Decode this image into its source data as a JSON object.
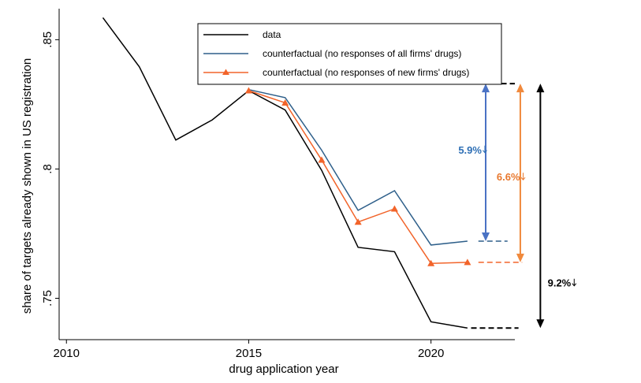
{
  "chart_data": {
    "type": "line",
    "xlabel": "drug application year",
    "ylabel": "share of targets already shown in US registration",
    "xlim": [
      2009.8,
      2022.3
    ],
    "ylim": [
      0.734,
      0.862
    ],
    "xticks": [
      {
        "value": 2010,
        "label": "2010"
      },
      {
        "value": 2015,
        "label": "2015"
      },
      {
        "value": 2020,
        "label": "2020"
      }
    ],
    "yticks": [
      {
        "value": 0.75,
        "label": ".75"
      },
      {
        "value": 0.8,
        "label": ".8"
      },
      {
        "value": 0.85,
        "label": ".85"
      }
    ],
    "grid": false,
    "legend_position": "top-center",
    "series": [
      {
        "name": "data",
        "color": "#000000",
        "marker": "none",
        "x": [
          2011,
          2012,
          2013,
          2014,
          2015,
          2016,
          2017,
          2018,
          2019,
          2020,
          2021
        ],
        "y": [
          0.8585,
          0.8395,
          0.8112,
          0.819,
          0.8303,
          0.8228,
          0.7995,
          0.7697,
          0.768,
          0.7409,
          0.7385
        ]
      },
      {
        "name": "counterfactual (no responses of all firms' drugs)",
        "color": "#2e5f8a",
        "marker": "none",
        "x": [
          2015,
          2016,
          2017,
          2018,
          2019,
          2020,
          2021
        ],
        "y": [
          0.8307,
          0.8276,
          0.8073,
          0.784,
          0.7916,
          0.7706,
          0.7721
        ]
      },
      {
        "name": "counterfactual (no responses of new firms' drugs)",
        "color": "#f2642a",
        "marker": "triangle",
        "x": [
          2015,
          2016,
          2017,
          2018,
          2019,
          2020,
          2021
        ],
        "y": [
          0.8303,
          0.8256,
          0.8035,
          0.7795,
          0.7846,
          0.7635,
          0.7639
        ]
      }
    ],
    "annotations": {
      "top_reference": {
        "y": 0.833,
        "x_from": 2015.5,
        "x_to": 2022.3,
        "color": "#000000"
      },
      "blue_reference": {
        "y": 0.7721,
        "x_from": 2021.3,
        "x_to": 2022.1,
        "color": "#2e5f8a"
      },
      "orange_reference": {
        "y": 0.7639,
        "x_from": 2021.3,
        "x_to": 2022.5,
        "color": "#f2642a"
      },
      "bottom_reference": {
        "y": 0.7385,
        "x_from": 2021.1,
        "x_to": 2022.4,
        "color": "#000000"
      },
      "arrows": [
        {
          "x": 2021.5,
          "y_from": 0.833,
          "y_to": 0.7721,
          "color": "#4a72c4",
          "label": "5.9%",
          "label_color": "#2e6fb5",
          "label_x": 2020.75,
          "label_y": 0.806
        },
        {
          "x": 2022.45,
          "y_from": 0.833,
          "y_to": 0.7639,
          "color": "#f0893c",
          "label": "6.6%",
          "label_color": "#e8782e",
          "label_x": 2021.8,
          "label_y": 0.7955
        },
        {
          "x": 2023.0,
          "y_from": 0.833,
          "y_to": 0.7385,
          "color": "#000000",
          "label": "9.2%",
          "label_color": "#000000",
          "label_x": 2023.2,
          "label_y": 0.7545
        }
      ]
    }
  }
}
